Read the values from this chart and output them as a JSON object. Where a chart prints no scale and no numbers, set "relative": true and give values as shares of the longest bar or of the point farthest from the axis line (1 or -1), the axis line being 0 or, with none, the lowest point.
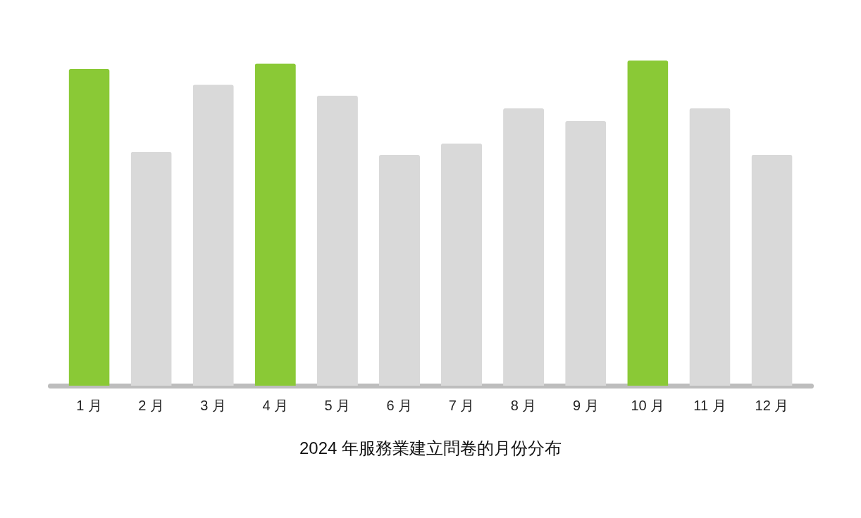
{
  "chart_data": {
    "type": "bar",
    "title": "2024 年服務業建立問卷的月份分布",
    "relative": true,
    "categories": [
      "1 月",
      "2 月",
      "3 月",
      "4 月",
      "5 月",
      "6 月",
      "7 月",
      "8 月",
      "9 月",
      "10 月",
      "11 月",
      "12 月"
    ],
    "values": [
      0.974,
      0.719,
      0.926,
      0.991,
      0.892,
      0.71,
      0.745,
      0.853,
      0.814,
      1,
      0.853,
      0.71
    ],
    "colors": [
      "#8ac936",
      "#d9d9d9",
      "#d9d9d9",
      "#8ac936",
      "#d9d9d9",
      "#d9d9d9",
      "#d9d9d9",
      "#d9d9d9",
      "#d9d9d9",
      "#8ac936",
      "#d9d9d9",
      "#d9d9d9"
    ]
  }
}
